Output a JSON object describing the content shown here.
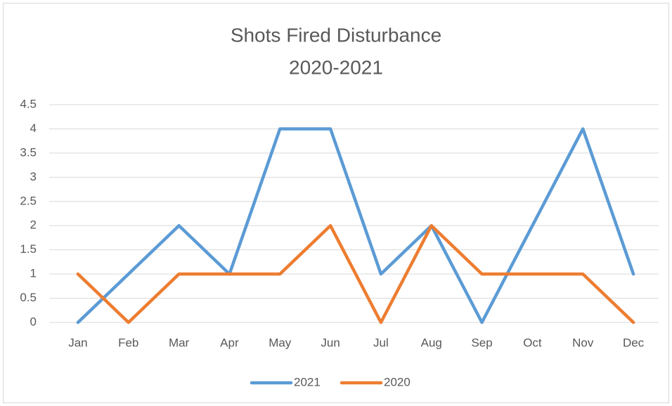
{
  "chart_data": {
    "type": "line",
    "title": [
      "Shots Fired Disturbance",
      "2020-2021"
    ],
    "categories": [
      "Jan",
      "Feb",
      "Mar",
      "Apr",
      "May",
      "Jun",
      "Jul",
      "Aug",
      "Sep",
      "Oct",
      "Nov",
      "Dec"
    ],
    "series": [
      {
        "name": "2021",
        "color": "#5b9bd5",
        "values": [
          0,
          1,
          2,
          1,
          4,
          4,
          1,
          2,
          0,
          2,
          4,
          1
        ]
      },
      {
        "name": "2020",
        "color": "#ed7d31",
        "values": [
          1,
          0,
          1,
          1,
          1,
          2,
          0,
          2,
          1,
          1,
          1,
          0
        ]
      }
    ],
    "ylim": [
      0,
      4.5
    ],
    "yticks": [
      0,
      0.5,
      1,
      1.5,
      2,
      2.5,
      3,
      3.5,
      4,
      4.5
    ],
    "grid": true,
    "legend": "bottom"
  }
}
